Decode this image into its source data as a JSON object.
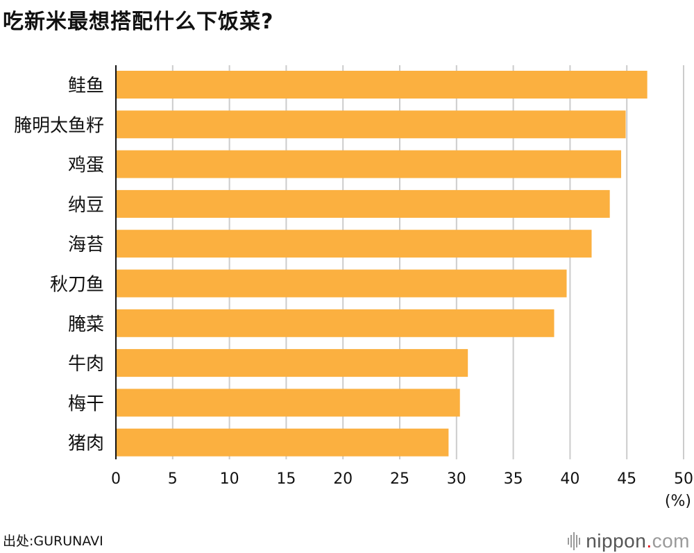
{
  "title": "吃新米最想搭配什么下饭菜?",
  "source": "出处:GURUNAVI",
  "brand": {
    "name": "nippon",
    "dot": ".",
    "tld": "com",
    "dot_color": "#e60012"
  },
  "colors": {
    "bar": "#fbb040",
    "grid": "#cccccc",
    "axis": "#111111"
  },
  "chart_data": {
    "type": "bar",
    "orientation": "horizontal",
    "categories": [
      "鲑鱼",
      "腌明太鱼籽",
      "鸡蛋",
      "纳豆",
      "海苔",
      "秋刀鱼",
      "腌菜",
      "牛肉",
      "梅干",
      "猪肉"
    ],
    "values": [
      46.8,
      44.9,
      44.5,
      43.5,
      41.9,
      39.7,
      38.6,
      31.0,
      30.3,
      29.3
    ],
    "xlim": [
      0,
      50
    ],
    "xticks": [
      0,
      5,
      10,
      15,
      20,
      25,
      30,
      35,
      40,
      45,
      50
    ],
    "unit_label": "(%)",
    "grid": true
  }
}
